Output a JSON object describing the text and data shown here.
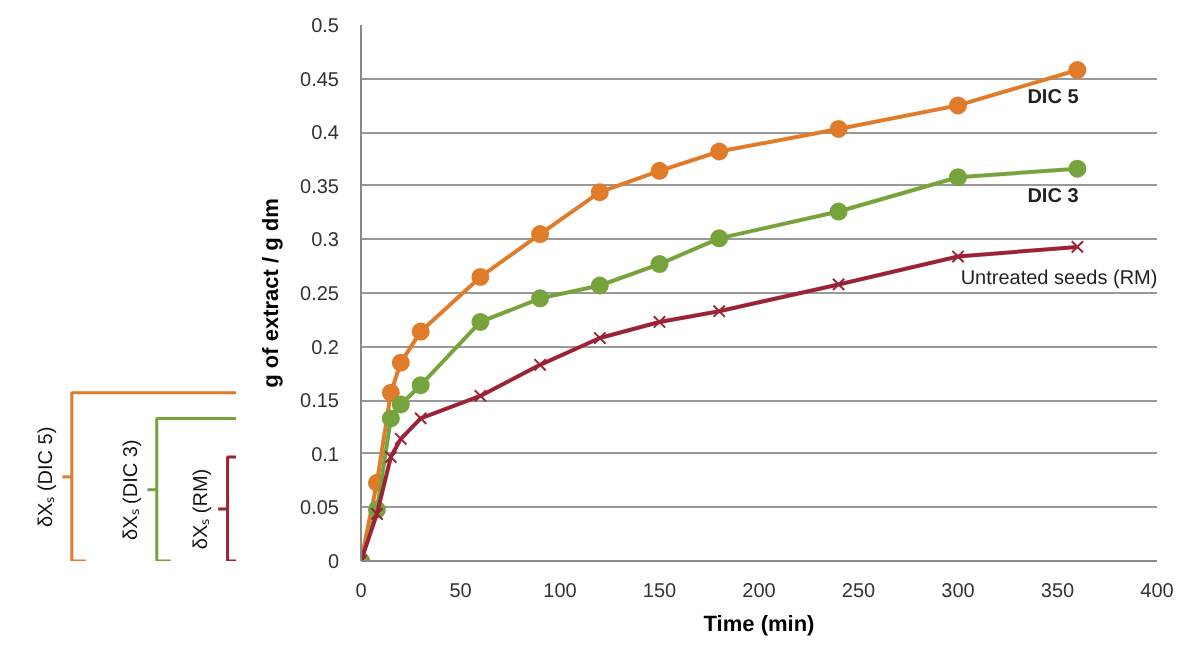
{
  "chart_data": {
    "type": "line",
    "xlabel": "Time (min)",
    "ylabel": "g of extract / g dm",
    "xlim": [
      0,
      400
    ],
    "xticks": [
      0,
      50,
      100,
      150,
      200,
      250,
      300,
      350,
      400
    ],
    "ylim": [
      0,
      0.5
    ],
    "yticks": [
      0,
      0.05,
      0.1,
      0.15,
      0.2,
      0.25,
      0.3,
      0.35,
      0.4,
      0.45,
      0.5
    ],
    "grid": "y",
    "legend": false,
    "line_style": "solid",
    "x": [
      0,
      8,
      15,
      20,
      30,
      60,
      90,
      120,
      150,
      180,
      240,
      300,
      360
    ],
    "series": [
      {
        "name": "DIC 5",
        "color": "#e07b2a",
        "marker": "circle",
        "values": [
          0,
          0.073,
          0.157,
          0.185,
          0.214,
          0.265,
          0.305,
          0.344,
          0.364,
          0.382,
          0.403,
          0.425,
          0.458
        ]
      },
      {
        "name": "DIC 3",
        "color": "#77a33c",
        "marker": "circle",
        "values": [
          0,
          0.048,
          0.133,
          0.146,
          0.164,
          0.223,
          0.245,
          0.257,
          0.277,
          0.301,
          0.326,
          0.358,
          0.366
        ]
      },
      {
        "name": "Untreated seeds (RM)",
        "color": "#9b2335",
        "marker": "cross",
        "values": [
          0,
          0.044,
          0.097,
          0.114,
          0.133,
          0.154,
          0.183,
          0.208,
          0.223,
          0.233,
          0.258,
          0.284,
          0.293
        ]
      }
    ],
    "annotations": [
      "δXₛ (DIC 5)",
      "δXₛ (DIC 3)",
      "δXₛ (RM)"
    ]
  }
}
